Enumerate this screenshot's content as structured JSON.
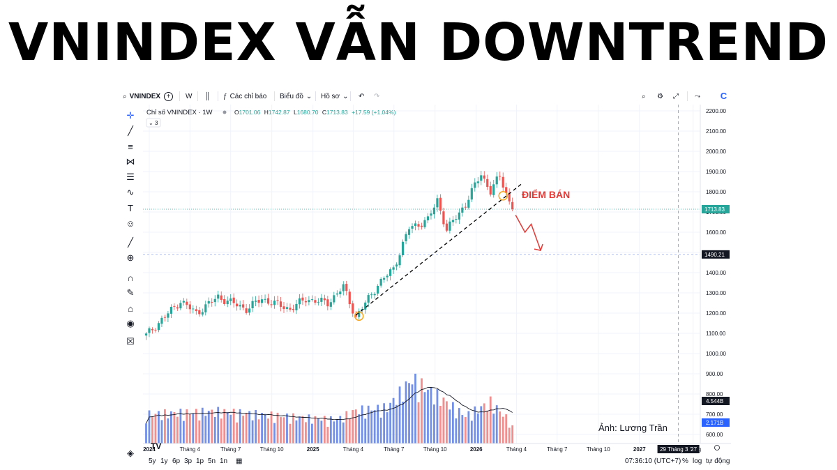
{
  "headline": "VNINDEX VẪN DOWNTREND",
  "toolbar": {
    "symbol": "VNINDEX",
    "interval": "W",
    "indicators": "Các chỉ báo",
    "chart_type": "Biểu đồ",
    "profile": "Hồ sơ"
  },
  "legend": {
    "name": "Chỉ số VNINDEX · 1W",
    "o_label": "O",
    "o": "1701.06",
    "h_label": "H",
    "h": "1742.87",
    "l_label": "L",
    "l": "1680.70",
    "c_label": "C",
    "c": "1713.83",
    "change": "+17.59 (+1.04%)",
    "collapse_count": "3"
  },
  "annotation": {
    "sell_label": "ĐIỂM BÁN",
    "credit": "Ảnh: Lương Trần"
  },
  "price_axis": {
    "ticks": [
      "2200.00",
      "2100.00",
      "2000.00",
      "1900.00",
      "1800.00",
      "1700.00",
      "1600.00",
      "1500.00",
      "1400.00",
      "1300.00",
      "1200.00",
      "1100.00",
      "1000.00",
      "900.00",
      "800.00",
      "700.00",
      "600.00"
    ],
    "last_price": "1713.83",
    "support_price": "1490.21",
    "volume_ma": "4.544B",
    "volume_last": "2.171B"
  },
  "time_axis": {
    "labels": [
      "2024",
      "Tháng 4",
      "Tháng 7",
      "Tháng 10",
      "2025",
      "Tháng 4",
      "Tháng 7",
      "Tháng 10",
      "2026",
      "Tháng 4",
      "Tháng 7",
      "Tháng 10",
      "2027",
      "Tháng"
    ],
    "crosshair_label": "29 Tháng 3 '27"
  },
  "bottom_bar": {
    "ranges": [
      "5y",
      "1y",
      "6p",
      "3p",
      "1p",
      "5n",
      "1n"
    ],
    "clock": "07:36:10 (UTC+7)",
    "pct": "%",
    "log": "log",
    "auto": "tự động"
  },
  "colors": {
    "up": "#26a69a",
    "down": "#ef5350",
    "vol_up": "#7290e8",
    "vol_down": "#f28e8e",
    "sell_label": "#e53935",
    "last_price_bg": "#26a69a",
    "support_bg": "#131722",
    "ma_line": "#131722",
    "circle": "#f5a623"
  },
  "chart_data": {
    "type": "candlestick",
    "title": "Chỉ số VNINDEX · 1W",
    "ylim": [
      550,
      2230
    ],
    "volume_ylim": [
      0,
      10
    ],
    "x_range": [
      "2023-12-18",
      "2027-05-17"
    ],
    "y_scale": "linear",
    "grid": true,
    "levels": {
      "last_price": 1713.83,
      "support": 1490.21
    },
    "trendline": [
      {
        "date": "2025-04-07",
        "price": 1190
      },
      {
        "date": "2026-04-13",
        "price": 1840
      }
    ],
    "circles": [
      {
        "date": "2025-04-14",
        "price": 1185
      },
      {
        "date": "2026-03-02",
        "price": 1780
      }
    ],
    "arrow_points": [
      {
        "date": "2026-03-30",
        "price": 1685
      },
      {
        "date": "2026-04-20",
        "price": 1600
      },
      {
        "date": "2026-05-04",
        "price": 1640
      },
      {
        "date": "2026-05-25",
        "price": 1510
      }
    ],
    "candle_anchors": [
      {
        "date": "2023-12-25",
        "close": 1090
      },
      {
        "date": "2024-03-11",
        "close": 1260
      },
      {
        "date": "2024-04-15",
        "close": 1200
      },
      {
        "date": "2024-06-03",
        "close": 1280
      },
      {
        "date": "2024-08-05",
        "close": 1220
      },
      {
        "date": "2024-09-09",
        "close": 1270
      },
      {
        "date": "2024-11-11",
        "close": 1220
      },
      {
        "date": "2024-12-16",
        "close": 1270
      },
      {
        "date": "2025-02-03",
        "close": 1250
      },
      {
        "date": "2025-03-10",
        "close": 1330
      },
      {
        "date": "2025-04-07",
        "close": 1180
      },
      {
        "date": "2025-05-26",
        "close": 1340
      },
      {
        "date": "2025-06-30",
        "close": 1420
      },
      {
        "date": "2025-08-04",
        "close": 1620
      },
      {
        "date": "2025-09-15",
        "close": 1660
      },
      {
        "date": "2025-10-06",
        "close": 1760
      },
      {
        "date": "2025-10-27",
        "close": 1610
      },
      {
        "date": "2025-12-08",
        "close": 1740
      },
      {
        "date": "2026-01-12",
        "close": 1890
      },
      {
        "date": "2026-02-02",
        "close": 1800
      },
      {
        "date": "2026-02-23",
        "close": 1880
      },
      {
        "date": "2026-03-16",
        "close": 1750
      },
      {
        "date": "2026-03-23",
        "close": 1713.83
      }
    ],
    "volume_profile": [
      {
        "date": "2023-12-25",
        "value": 3.2
      },
      {
        "date": "2024-06-03",
        "value": 3.5
      },
      {
        "date": "2024-12-16",
        "value": 2.8
      },
      {
        "date": "2025-02-24",
        "value": 2.6
      },
      {
        "date": "2025-04-07",
        "value": 3.6
      },
      {
        "date": "2025-06-16",
        "value": 3.9
      },
      {
        "date": "2025-08-11",
        "value": 7.0
      },
      {
        "date": "2025-10-06",
        "value": 5.2
      },
      {
        "date": "2025-12-08",
        "value": 3.0
      },
      {
        "date": "2026-02-02",
        "value": 4.5
      },
      {
        "date": "2026-03-23",
        "value": 2.17
      }
    ]
  }
}
